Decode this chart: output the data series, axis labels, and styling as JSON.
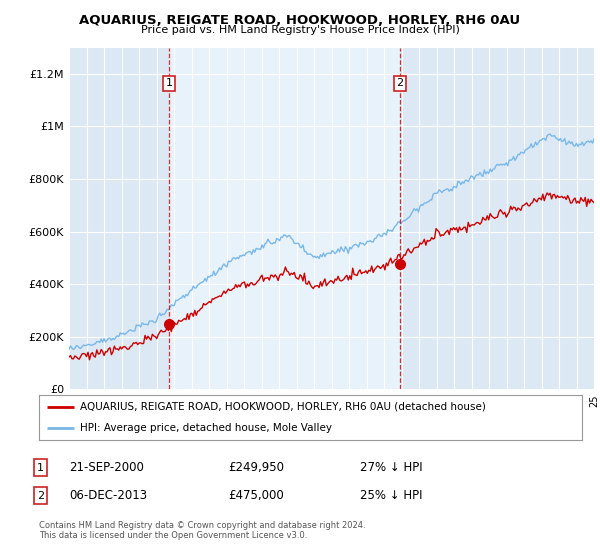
{
  "title": "AQUARIUS, REIGATE ROAD, HOOKWOOD, HORLEY, RH6 0AU",
  "subtitle": "Price paid vs. HM Land Registry's House Price Index (HPI)",
  "legend_line1": "AQUARIUS, REIGATE ROAD, HOOKWOOD, HORLEY, RH6 0AU (detached house)",
  "legend_line2": "HPI: Average price, detached house, Mole Valley",
  "footer1": "Contains HM Land Registry data © Crown copyright and database right 2024.",
  "footer2": "This data is licensed under the Open Government Licence v3.0.",
  "annotation1_date": "21-SEP-2000",
  "annotation1_price": "£249,950",
  "annotation1_hpi": "27% ↓ HPI",
  "annotation2_date": "06-DEC-2013",
  "annotation2_price": "£475,000",
  "annotation2_hpi": "25% ↓ HPI",
  "hpi_color": "#7ab8e8",
  "price_color": "#cc0000",
  "plot_bg_color": "#dce9f5",
  "highlight_color": "#e8f2fb",
  "ylim": [
    0,
    1300000
  ],
  "yticks": [
    0,
    200000,
    400000,
    600000,
    800000,
    1000000,
    1200000
  ],
  "ytick_labels": [
    "£0",
    "£200K",
    "£400K",
    "£600K",
    "£800K",
    "£1M",
    "£1.2M"
  ],
  "sale1_x": 2000.72,
  "sale1_y": 249950,
  "sale2_x": 2013.92,
  "sale2_y": 475000,
  "xmin": 1995,
  "xmax": 2025,
  "noise_seed": 12
}
